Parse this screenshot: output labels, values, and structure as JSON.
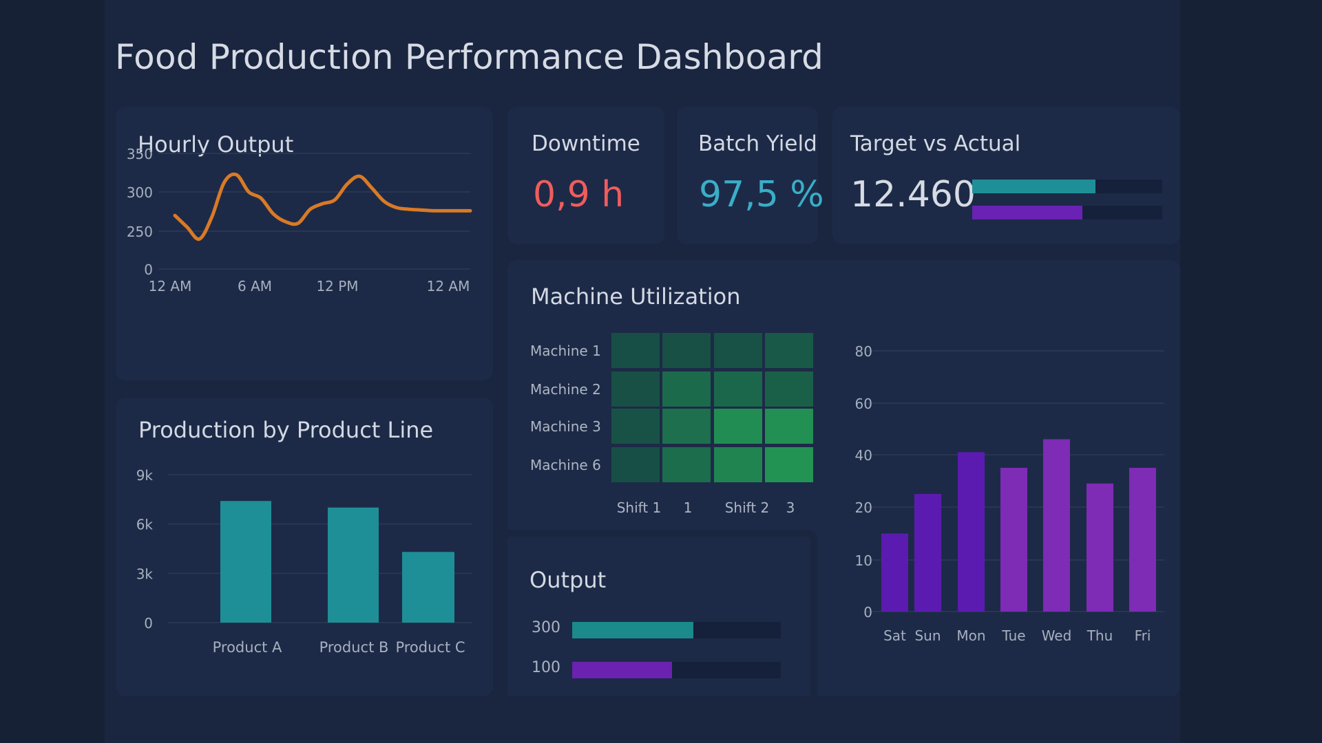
{
  "dashboard": {
    "title": "Food Production Performance Dashboard"
  },
  "colors": {
    "background": "#172136",
    "card": "#1d2a47",
    "line_orange": "#d97a26",
    "teal": "#1e8f97",
    "purple": "#6a22b4",
    "purple_light": "#8a2fc0",
    "downtime_red": "#ef5d5d",
    "yield_cyan": "#3aaec8"
  },
  "kpis": {
    "downtime": {
      "label": "Downtime",
      "value": "0,9 h"
    },
    "batch_yield": {
      "label": "Batch Yield",
      "value": "97,5 %"
    },
    "target_vs_actual": {
      "label": "Target vs Actual",
      "value": "12.460",
      "bars": [
        {
          "fraction": 0.65,
          "color": "#1e8f97"
        },
        {
          "fraction": 0.58,
          "color": "#6a22b4"
        }
      ]
    }
  },
  "hourly_output": {
    "title": "Hourly Output"
  },
  "product_line": {
    "title": "Production by Product Line"
  },
  "machine_utilization": {
    "title": "Machine Utilization"
  },
  "output_card": {
    "title": "Output",
    "rows": [
      {
        "label": "300",
        "fraction": 0.58,
        "color": "#1a8a8a"
      },
      {
        "label": "100",
        "fraction": 0.48,
        "color": "#6b22b0"
      }
    ]
  },
  "chart_data": [
    {
      "id": "hourly",
      "type": "line",
      "title": "Hourly Output",
      "x_tick_labels": [
        "12 AM",
        "6 AM",
        "12 PM",
        "12 AM"
      ],
      "y_tick_labels": [
        "350",
        "300",
        "250",
        "0"
      ],
      "x": [
        0,
        1,
        2,
        3,
        4,
        5,
        6,
        7,
        8,
        9,
        10,
        11,
        12,
        13,
        14,
        15,
        16,
        17,
        18,
        19,
        20,
        21,
        22,
        23,
        24
      ],
      "values": [
        270,
        255,
        240,
        268,
        312,
        322,
        300,
        292,
        272,
        262,
        260,
        278,
        285,
        290,
        310,
        320,
        305,
        288,
        280,
        278,
        277,
        276,
        276,
        276,
        276
      ],
      "color": "#d97a26"
    },
    {
      "id": "product_line",
      "type": "bar",
      "title": "Production by Product Line",
      "categories": [
        "Product A",
        "Product B",
        "Product C"
      ],
      "values": [
        7400,
        7000,
        4300
      ],
      "y_tick_labels": [
        "9k",
        "6k",
        "3k",
        "0"
      ],
      "ylim": [
        0,
        9000
      ],
      "color": "#1e8f97"
    },
    {
      "id": "utilization",
      "type": "heatmap",
      "title": "Machine Utilization",
      "rows": [
        "Machine 1",
        "Machine 2",
        "Machine 3",
        "Machine 6"
      ],
      "x_labels": [
        "Shift 1",
        "1",
        "Shift 2",
        "3"
      ],
      "values": [
        [
          0.1,
          0.12,
          0.14,
          0.22
        ],
        [
          0.12,
          0.42,
          0.38,
          0.3
        ],
        [
          0.14,
          0.48,
          0.82,
          0.85
        ],
        [
          0.1,
          0.45,
          0.72,
          0.9
        ]
      ]
    },
    {
      "id": "weekly",
      "type": "bar",
      "categories": [
        "Sat",
        "Sun",
        "Mon",
        "Tue",
        "Wed",
        "Thu",
        "Fri"
      ],
      "y_tick_labels": [
        "80",
        "60",
        "40",
        "20",
        "10",
        "0"
      ],
      "values": [
        15,
        25,
        41,
        35,
        46,
        29,
        35
      ],
      "colors": [
        "#5c1bb0",
        "#5c1bb0",
        "#5c1bb0",
        "#7e2bb6",
        "#7e2bb6",
        "#7e2bb6",
        "#7e2bb6"
      ]
    }
  ]
}
